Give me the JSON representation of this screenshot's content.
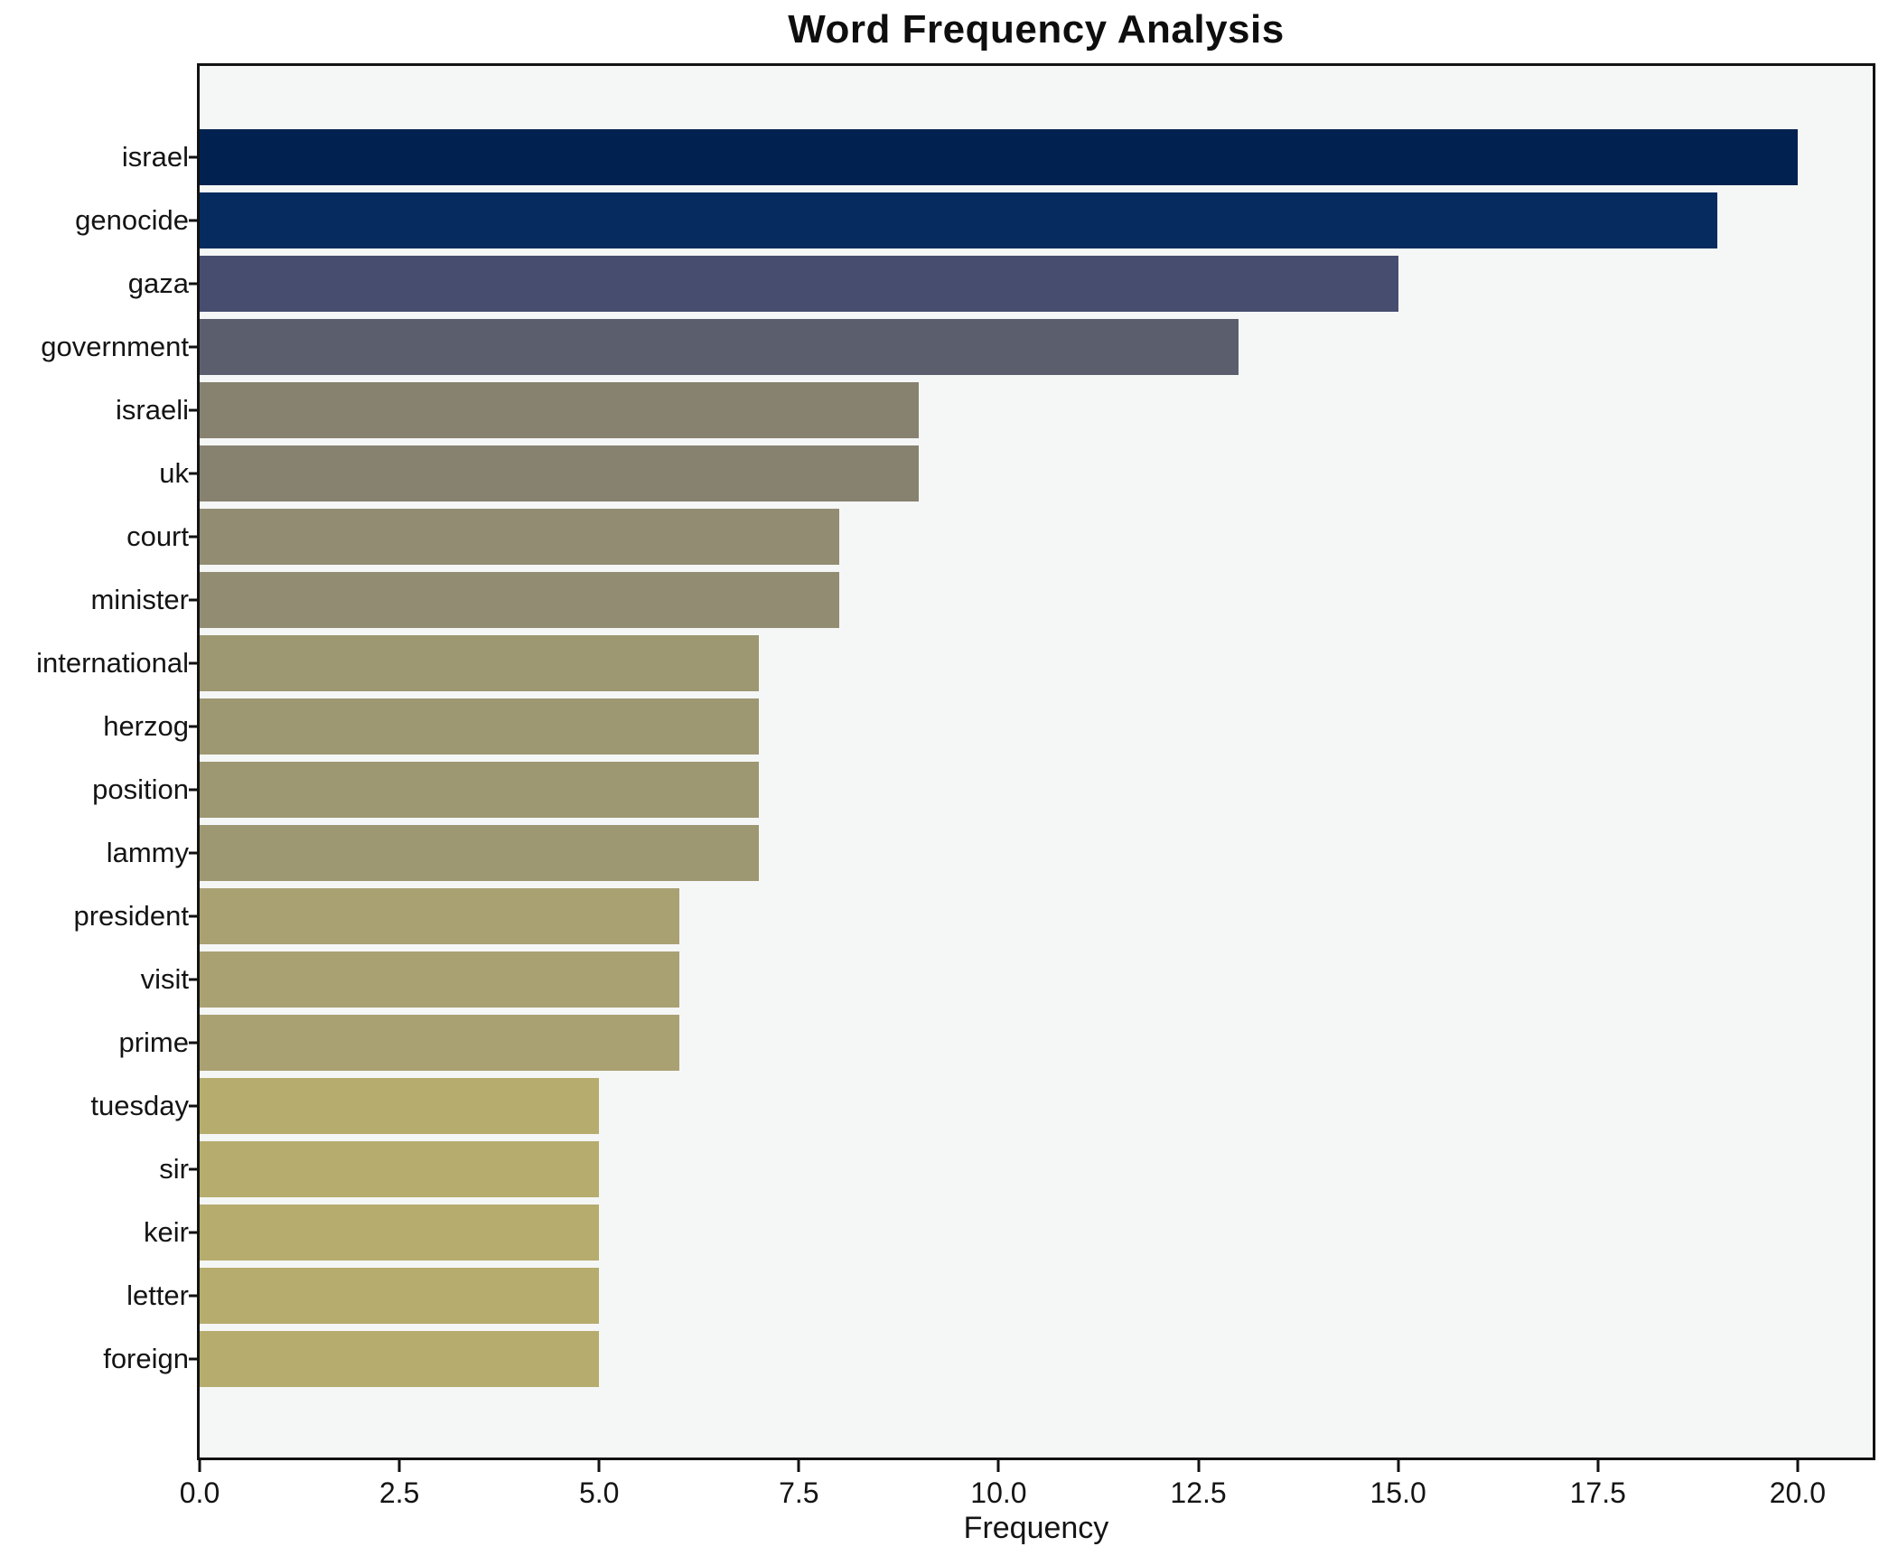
{
  "title": "Word Frequency Analysis",
  "chart_data": {
    "type": "bar",
    "orientation": "horizontal",
    "title": "Word Frequency Analysis",
    "xlabel": "Frequency",
    "ylabel": "",
    "categories": [
      "israel",
      "genocide",
      "gaza",
      "government",
      "israeli",
      "uk",
      "court",
      "minister",
      "international",
      "herzog",
      "position",
      "lammy",
      "president",
      "visit",
      "prime",
      "tuesday",
      "sir",
      "keir",
      "letter",
      "foreign"
    ],
    "values": [
      20,
      19,
      15,
      13,
      9,
      9,
      8,
      8,
      7,
      7,
      7,
      7,
      6,
      6,
      6,
      5,
      5,
      5,
      5,
      5
    ],
    "bar_colors": [
      "#012250",
      "#052b5f",
      "#464d6e",
      "#5b5f6d",
      "#87826f",
      "#87826f",
      "#928c73",
      "#928c73",
      "#9d9772",
      "#9d9772",
      "#9d9772",
      "#9d9772",
      "#aaa173",
      "#aaa173",
      "#aaa173",
      "#b6ac6e",
      "#b6ac6e",
      "#b6ac6e",
      "#b6ac6e",
      "#b6ac6e"
    ],
    "xlim": [
      0,
      20.94
    ],
    "xticks": [
      0,
      2.5,
      5,
      7.5,
      10,
      12.5,
      15,
      17.5,
      20
    ],
    "xtick_labels": [
      "0.0",
      "2.5",
      "5.0",
      "7.5",
      "10.0",
      "12.5",
      "15.0",
      "17.5",
      "20.0"
    ],
    "grid": false,
    "legend": false,
    "plot_background": "#f5f6f6",
    "figure_background": "#ffffff",
    "spine_color": "#121212",
    "bar_gap_background": "#f7f8f8"
  }
}
